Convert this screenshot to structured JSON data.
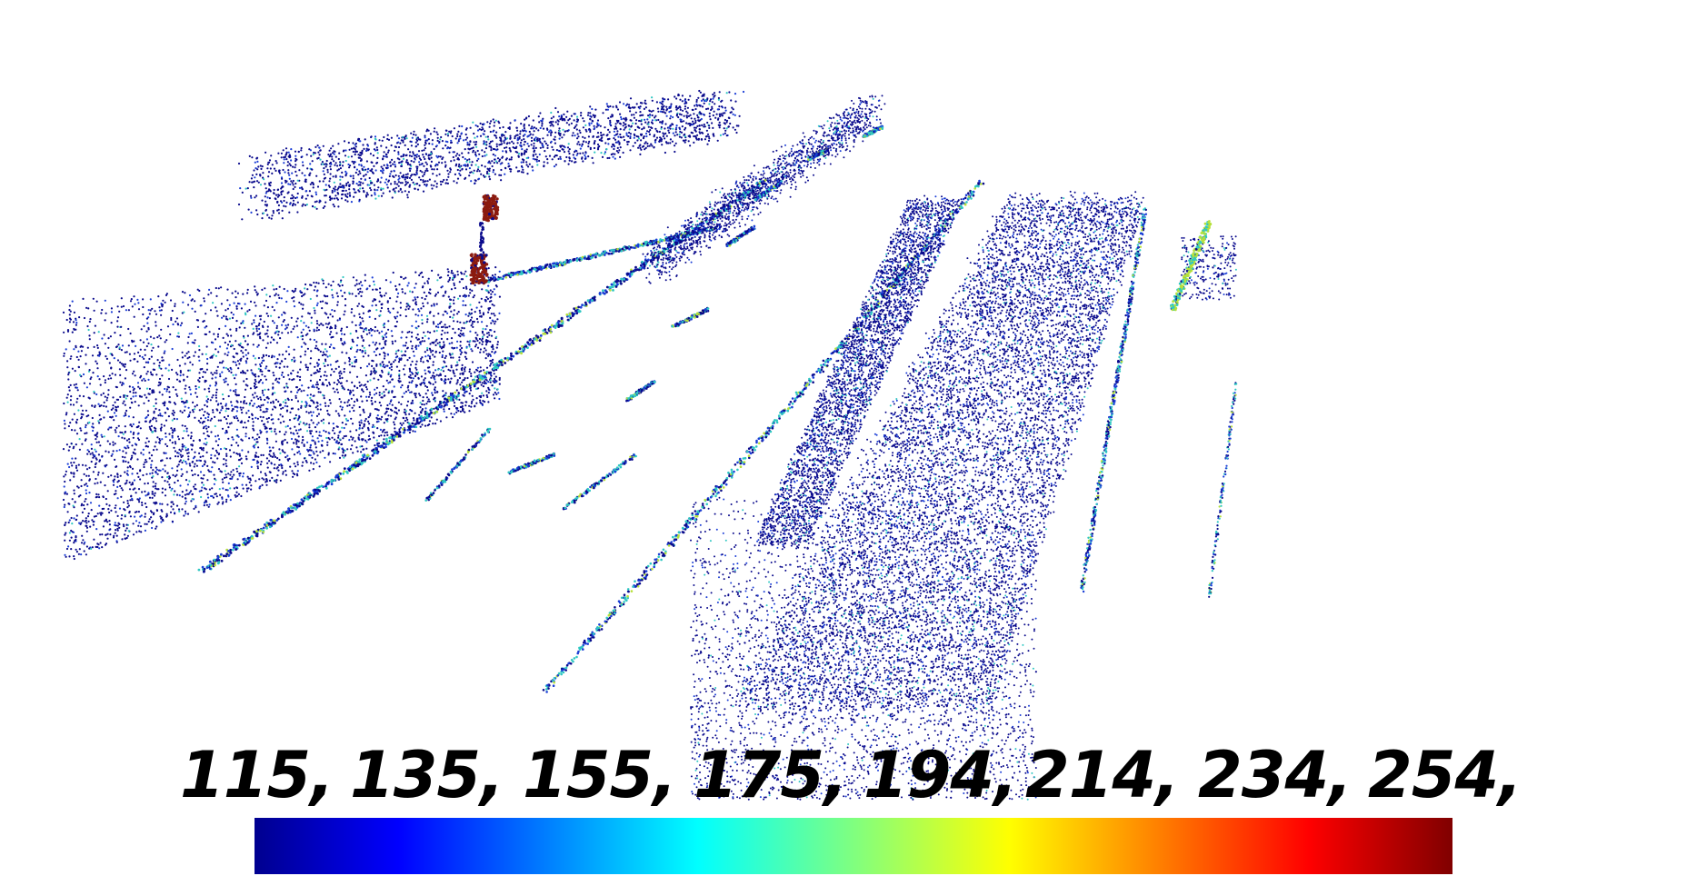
{
  "scene": {
    "type": "lidar point cloud (road scene, perspective view)",
    "color_by": "intensity"
  },
  "colorbar": {
    "tick_labels": [
      "115,",
      "135,",
      "155,",
      "175,",
      "194,",
      "214,",
      "234,",
      "254,"
    ],
    "colormap": "jet",
    "stops": [
      "#00008f",
      "#0000ff",
      "#00ffff",
      "#ffff00",
      "#ff0000",
      "#800000"
    ]
  },
  "colors": {
    "low": "#0a0a8c",
    "mid_low": "#1a3dd6",
    "mid": "#2ec7c2",
    "mid_high": "#b6e03a",
    "high": "#8b1a0f"
  }
}
